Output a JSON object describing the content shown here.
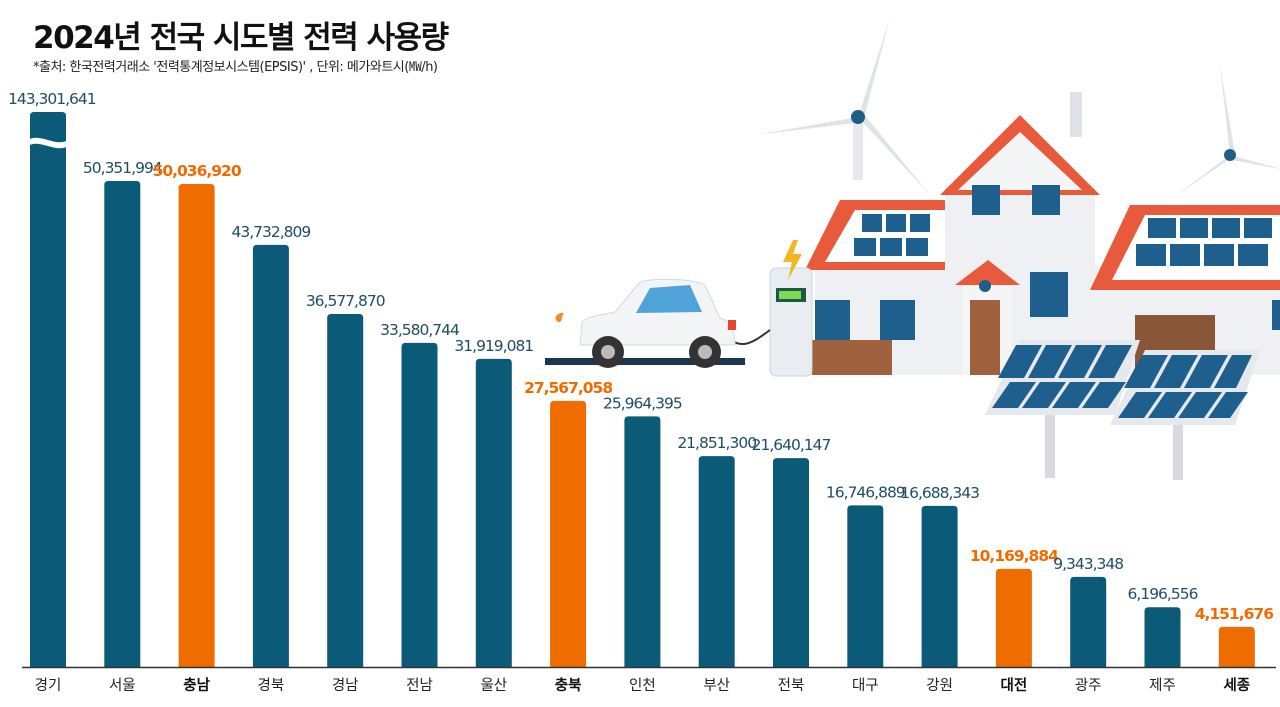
{
  "title": "2024년 전국 시도별 전력 사용량",
  "source": "*출처: 한국전력거래소 '전력통계정보시스템(EPSIS)' , 단위: 메가와트시(㎿/h)",
  "colors": {
    "bar": "#0b5a78",
    "highlight": "#ef6c00",
    "axis": "#333333"
  },
  "chart_data": {
    "type": "bar",
    "title": "2024년 전국 시도별 전력 사용량",
    "ylabel": "메가와트시(㎿/h)",
    "xlabel": "",
    "axis_break": true,
    "categories": [
      "경기",
      "서울",
      "충남",
      "경북",
      "경남",
      "전남",
      "울산",
      "충북",
      "인천",
      "부산",
      "전북",
      "대구",
      "강원",
      "대전",
      "광주",
      "제주",
      "세종"
    ],
    "values": [
      143301641,
      50351994,
      50036920,
      43732809,
      36577870,
      33580744,
      31919081,
      27567058,
      25964395,
      21851300,
      21640147,
      16746889,
      16688343,
      10169884,
      9343348,
      6196556,
      4151676
    ],
    "value_labels": [
      "143,301,641",
      "50,351,994",
      "50,036,920",
      "43,732,809",
      "36,577,870",
      "33,580,744",
      "31,919,081",
      "27,567,058",
      "25,964,395",
      "21,851,300",
      "21,640,147",
      "16,746,889",
      "16,688,343",
      "10,169,884",
      "9,343,348",
      "6,196,556",
      "4,151,676"
    ],
    "highlighted": [
      "충남",
      "충북",
      "대전",
      "세종"
    ]
  }
}
